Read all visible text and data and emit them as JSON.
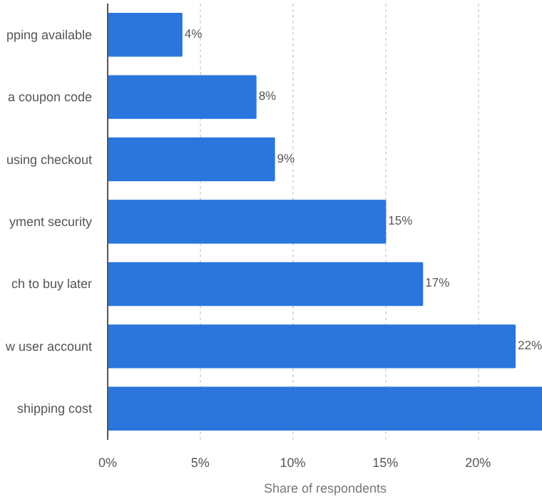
{
  "chart_data": {
    "type": "bar",
    "orientation": "horizontal",
    "xlabel": "Share of respondents",
    "categories": [
      "pping available",
      "a coupon code",
      "using checkout",
      "yment security",
      "ch to buy later",
      "w user account",
      "shipping cost"
    ],
    "values": [
      4,
      8,
      9,
      15,
      17,
      22,
      23.5
    ],
    "value_labels": [
      "4%",
      "8%",
      "9%",
      "15%",
      "17%",
      "22%",
      null
    ],
    "color": "#2a76dd",
    "xlim": [
      0,
      23.5
    ],
    "xticks": [
      {
        "value": 0,
        "label": "0%"
      },
      {
        "value": 5,
        "label": "5%"
      },
      {
        "value": 10,
        "label": "10%"
      },
      {
        "value": 15,
        "label": "15%"
      },
      {
        "value": 20,
        "label": "20%"
      }
    ],
    "grid": "x"
  }
}
